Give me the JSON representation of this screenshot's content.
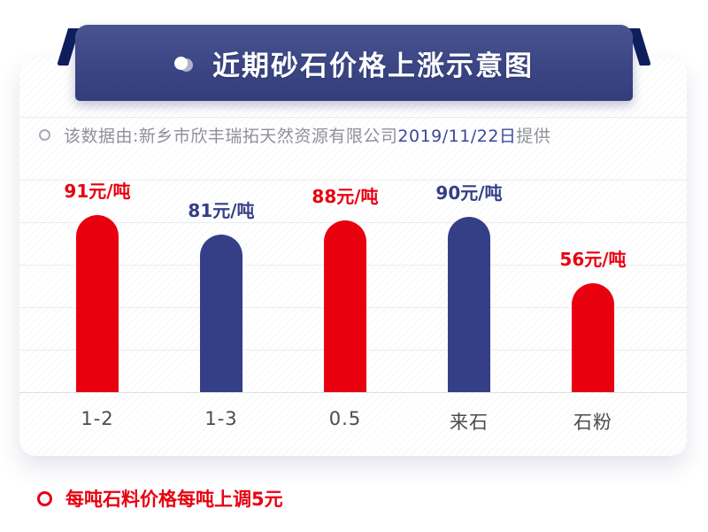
{
  "banner": {
    "title": "近期砂石价格上涨示意图",
    "bullet_icon": "sphere-bullet",
    "bg_top": "#49538f",
    "bg_bottom": "#333d7a",
    "fold_color": "#101e5e",
    "text_color": "#ffffff"
  },
  "subtitle": {
    "prefix": "该数据由:新乡市欣丰瑞拓天然资源有限公司",
    "date": "2019/11/22日",
    "suffix": "提供",
    "prefix_color": "#8f9198",
    "date_color": "#3a489b"
  },
  "chart_data": {
    "type": "bar",
    "title": "近期砂石价格上涨示意图",
    "unit": "元/吨",
    "categories": [
      "1-2",
      "1-3",
      "0.5",
      "来石",
      "石粉"
    ],
    "values": [
      91,
      81,
      88,
      90,
      56
    ],
    "value_labels": [
      "91元/吨",
      "81元/吨",
      "88元/吨",
      "90元/吨",
      "56元/吨"
    ],
    "bar_colors": [
      "#e8000f",
      "#343f87",
      "#e8000f",
      "#343f87",
      "#e8000f"
    ],
    "ylim": [
      0,
      100
    ],
    "grid": true,
    "legend": "none",
    "xlabel": "",
    "ylabel": ""
  },
  "footnote": {
    "text": "每吨石料价格每吨上调5元",
    "color": "#e8000f"
  }
}
